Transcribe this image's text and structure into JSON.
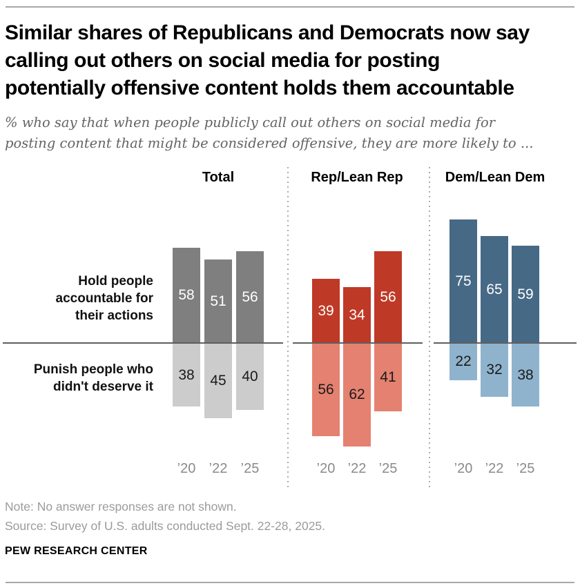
{
  "title_lines": [
    "Similar shares of Republicans and Democrats now say",
    "calling out others on social media for posting",
    "potentially offensive content holds them accountable"
  ],
  "subtitle_lines": [
    "% who say that when people publicly call out others on social media for",
    "posting content that might be considered offensive, they are more likely to ..."
  ],
  "row_labels": {
    "top_lines": [
      "Hold people",
      "accountable for",
      "their actions"
    ],
    "bottom_lines": [
      "Punish people who",
      "didn't deserve it"
    ]
  },
  "footer": {
    "note": "Note: No answer responses are not shown.",
    "source": "Source: Survey of U.S. adults conducted Sept. 22-28, 2025.",
    "branding": "PEW RESEARCH CENTER"
  },
  "chart_data": {
    "type": "bar",
    "subtype": "diverging-grouped",
    "unit": "%",
    "categories": [
      "’20",
      "’22",
      "’25"
    ],
    "rows": [
      "Hold people accountable for their actions",
      "Punish people who didn't deserve it"
    ],
    "panels": [
      {
        "label": "Total",
        "colors": {
          "top": "#7f7f7f",
          "bottom": "#cccccc"
        },
        "series": {
          "accountable": [
            58,
            51,
            56
          ],
          "punish": [
            38,
            45,
            40
          ]
        }
      },
      {
        "label": "Rep/Lean Rep",
        "colors": {
          "top": "#bf3927",
          "bottom": "#e58170"
        },
        "series": {
          "accountable": [
            39,
            34,
            56
          ],
          "punish": [
            56,
            62,
            41
          ]
        }
      },
      {
        "label": "Dem/Lean Dem",
        "colors": {
          "top": "#466985",
          "bottom": "#8fb3cd"
        },
        "series": {
          "accountable": [
            75,
            65,
            59
          ],
          "punish": [
            22,
            32,
            38
          ]
        }
      }
    ],
    "value_label_colors": {
      "top": "#ffffff",
      "bottom": "#1a1a1a"
    },
    "layout_hints": {
      "zero_line": true,
      "grid": false,
      "legend": false
    }
  }
}
